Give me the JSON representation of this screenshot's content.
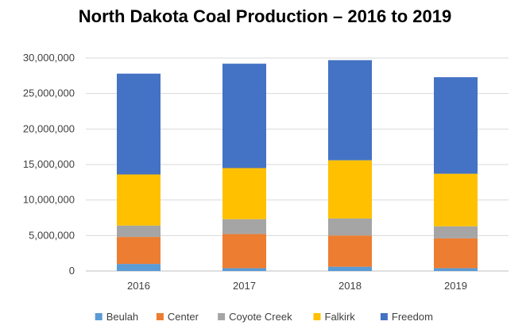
{
  "chart_data": {
    "type": "bar",
    "stacked": true,
    "title": "North Dakota Coal Production – 2016 to 2019",
    "xlabel": "",
    "ylabel": "",
    "categories": [
      "2016",
      "2017",
      "2018",
      "2019"
    ],
    "ylim": [
      0,
      30000000
    ],
    "yticks": [
      0,
      5000000,
      10000000,
      15000000,
      20000000,
      25000000,
      30000000
    ],
    "ytick_labels": [
      "0",
      "5,000,000",
      "10,000,000",
      "15,000,000",
      "20,000,000",
      "25,000,000",
      "30,000,000"
    ],
    "grid": true,
    "legend": "bottom",
    "series": [
      {
        "name": "Beulah",
        "color": "#5B9BD5",
        "values": [
          1000000,
          400000,
          600000,
          400000
        ]
      },
      {
        "name": "Center",
        "color": "#ED7D31",
        "values": [
          3800000,
          4800000,
          4400000,
          4200000
        ]
      },
      {
        "name": "Coyote Creek",
        "color": "#A5A5A5",
        "values": [
          1600000,
          2100000,
          2400000,
          1700000
        ]
      },
      {
        "name": "Falkirk",
        "color": "#FFC000",
        "values": [
          7200000,
          7200000,
          8200000,
          7400000
        ]
      },
      {
        "name": "Freedom",
        "color": "#4472C4",
        "values": [
          14200000,
          14700000,
          14100000,
          13600000
        ]
      }
    ]
  }
}
